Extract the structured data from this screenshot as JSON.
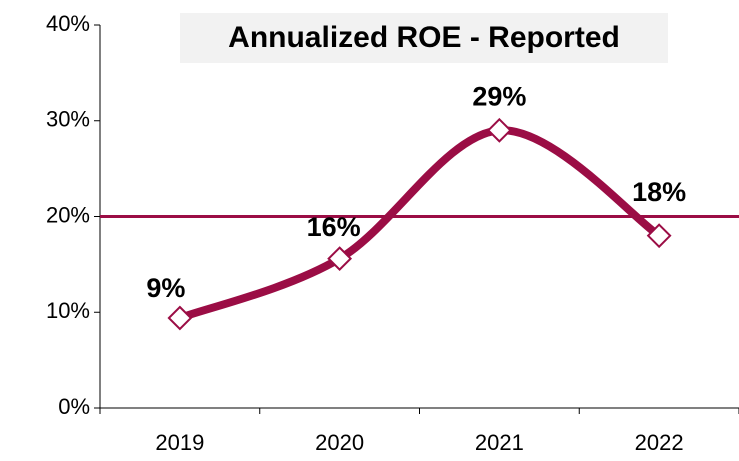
{
  "chart_data": {
    "type": "line",
    "title": "Annualized ROE - Reported",
    "categories": [
      "2019",
      "2020",
      "2021",
      "2022"
    ],
    "series": [
      {
        "color": "#9b0d45",
        "values": [
          9.4,
          15.6,
          29,
          18
        ],
        "value_labels": [
          "9%",
          "16%",
          "29%",
          "18%"
        ]
      }
    ],
    "hline": 20,
    "hline_color": "#9b0d45",
    "smooth": true,
    "ylim": [
      0,
      40
    ],
    "yticks": [
      {
        "value": 0,
        "label": "0%"
      },
      {
        "value": 10,
        "label": "10%"
      },
      {
        "value": 20,
        "label": "20%"
      },
      {
        "value": 30,
        "label": "30%"
      },
      {
        "value": 40,
        "label": "40%"
      }
    ]
  }
}
